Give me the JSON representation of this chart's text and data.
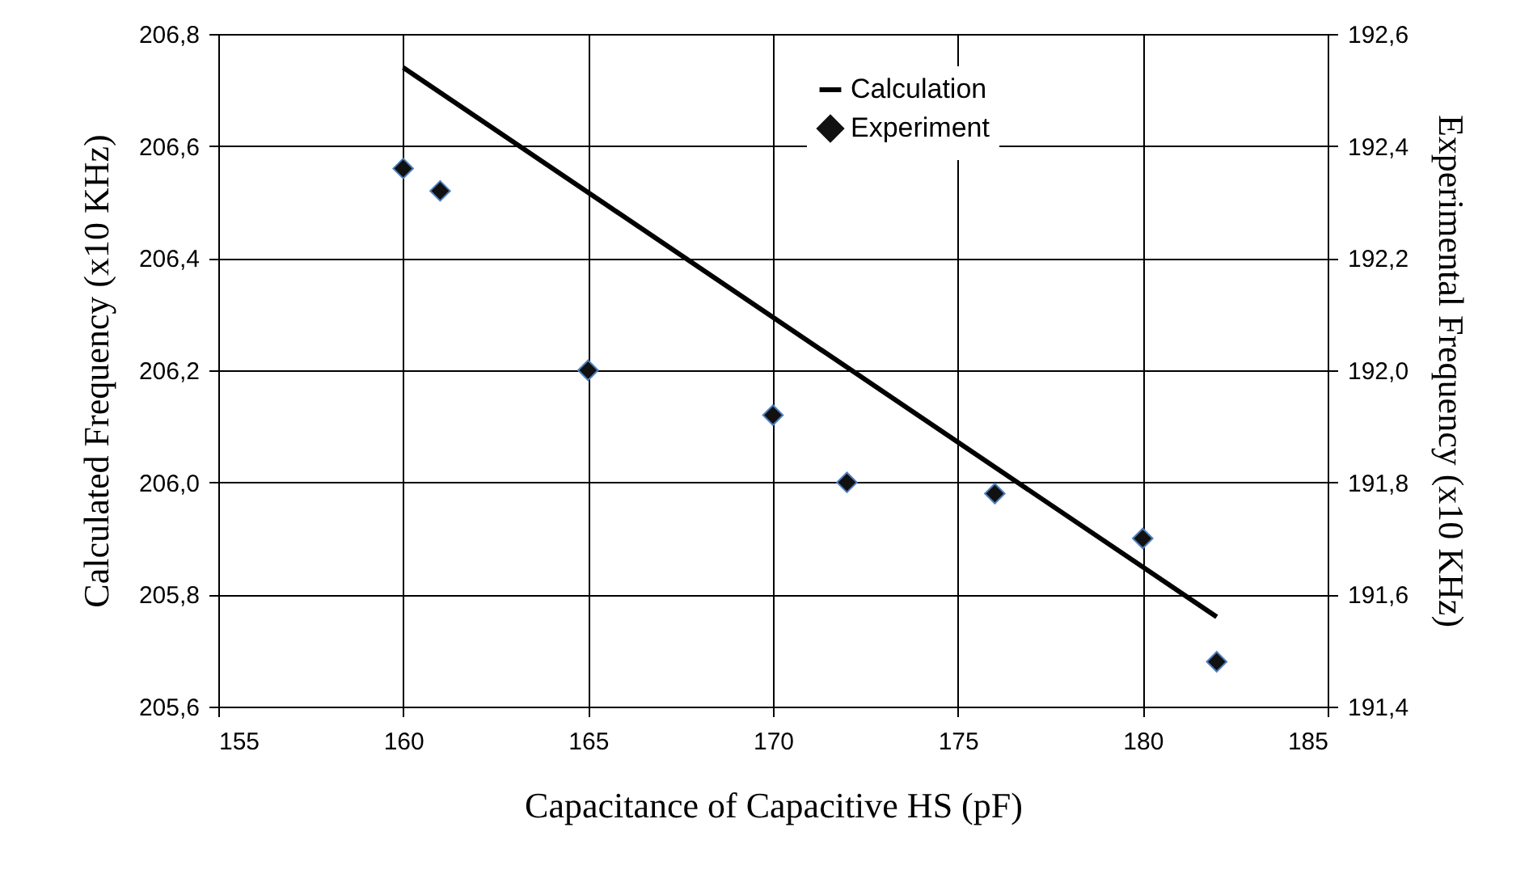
{
  "chart_data": {
    "type": "scatter",
    "xlabel": "Capacitance of Capacitive HS (pF)",
    "ylabel": "Calculated Frequency (x10 KHz)",
    "y2label": "Experimental Frequency (x10 KHz)",
    "xlim": [
      155,
      185
    ],
    "xticks": [
      155,
      160,
      165,
      170,
      175,
      180,
      185
    ],
    "ylim": [
      205.6,
      206.8
    ],
    "yticks": [
      {
        "value": 205.6,
        "label": "205,6"
      },
      {
        "value": 205.8,
        "label": "205,8"
      },
      {
        "value": 206.0,
        "label": "206,0"
      },
      {
        "value": 206.2,
        "label": "206,2"
      },
      {
        "value": 206.4,
        "label": "206,4"
      },
      {
        "value": 206.6,
        "label": "206,6"
      },
      {
        "value": 206.8,
        "label": "206,8"
      }
    ],
    "y2lim": [
      191.4,
      192.6
    ],
    "y2ticks": [
      {
        "value": 191.4,
        "label": "191,4"
      },
      {
        "value": 191.6,
        "label": "191,6"
      },
      {
        "value": 191.8,
        "label": "191,8"
      },
      {
        "value": 192.0,
        "label": "192,0"
      },
      {
        "value": 192.2,
        "label": "192,2"
      },
      {
        "value": 192.4,
        "label": "192,4"
      },
      {
        "value": 192.6,
        "label": "192,6"
      }
    ],
    "grid": true,
    "legend": "top right",
    "marker": "diamond",
    "series": [
      {
        "name": "Calculation",
        "type": "line",
        "color": "#000000",
        "marker": "none",
        "x": [
          160,
          182
        ],
        "values": [
          206.74,
          205.76
        ]
      },
      {
        "name": "Experiment",
        "color": "#111111",
        "axis": "y2",
        "x": [
          160,
          161,
          165,
          170,
          172,
          176,
          180,
          182
        ],
        "values": [
          192.36,
          192.32,
          192.0,
          191.92,
          191.8,
          191.78,
          191.7,
          191.48
        ]
      }
    ]
  }
}
